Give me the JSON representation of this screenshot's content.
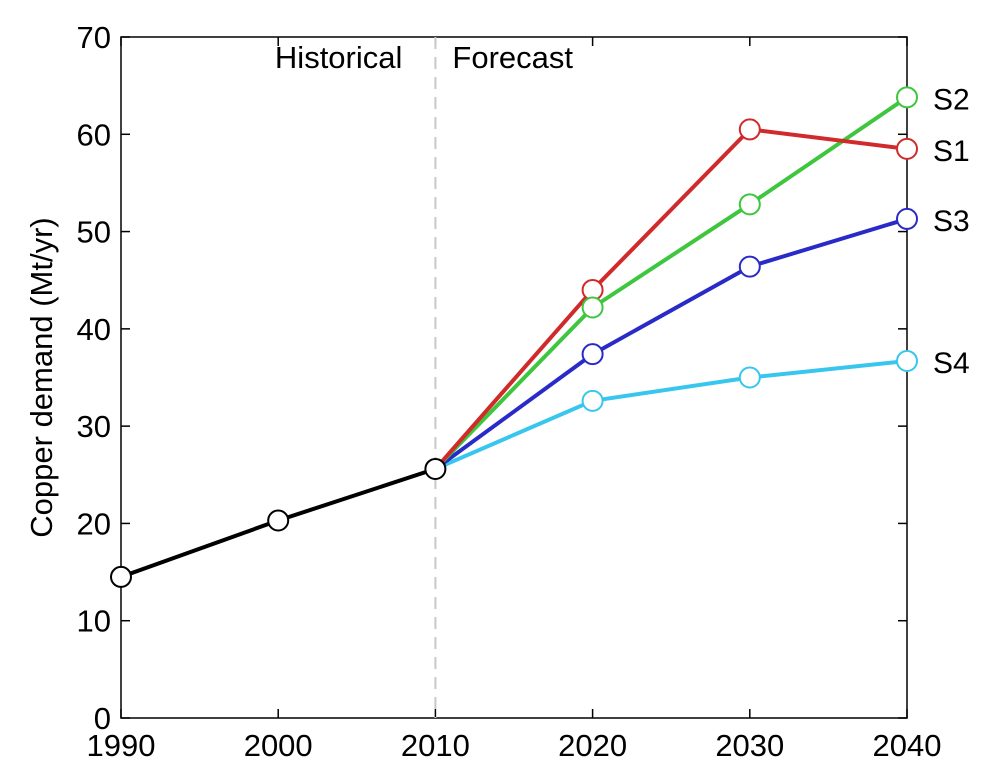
{
  "chart_data": {
    "type": "line",
    "ylabel": "Copper demand (Mt/yr)",
    "xlabel": "",
    "xlim": [
      1990,
      2040
    ],
    "ylim": [
      0,
      70
    ],
    "x_ticks": [
      1990,
      2000,
      2010,
      2020,
      2030,
      2040
    ],
    "y_ticks": [
      0,
      10,
      20,
      30,
      40,
      50,
      60,
      70
    ],
    "grid": false,
    "regions": [
      {
        "label": "Historical",
        "range": [
          1990,
          2010
        ]
      },
      {
        "label": "Forecast",
        "range": [
          2010,
          2040
        ]
      }
    ],
    "divider_x": 2010,
    "historical": {
      "color": "#000000",
      "x": [
        1990,
        2000,
        2010
      ],
      "y": [
        14.5,
        20.3,
        25.6
      ]
    },
    "series": [
      {
        "name": "S1",
        "color": "#d02a2a",
        "x": [
          2010,
          2020,
          2030,
          2040
        ],
        "y": [
          25.6,
          44.0,
          60.5,
          58.5
        ]
      },
      {
        "name": "S2",
        "color": "#3ec63e",
        "x": [
          2010,
          2020,
          2030,
          2040
        ],
        "y": [
          25.6,
          42.2,
          52.8,
          63.8
        ]
      },
      {
        "name": "S3",
        "color": "#2a2ac8",
        "x": [
          2010,
          2020,
          2030,
          2040
        ],
        "y": [
          25.6,
          37.4,
          46.4,
          51.3
        ]
      },
      {
        "name": "S4",
        "color": "#38c6ee",
        "x": [
          2010,
          2020,
          2030,
          2040
        ],
        "y": [
          25.6,
          32.6,
          35.0,
          36.7
        ]
      }
    ]
  }
}
